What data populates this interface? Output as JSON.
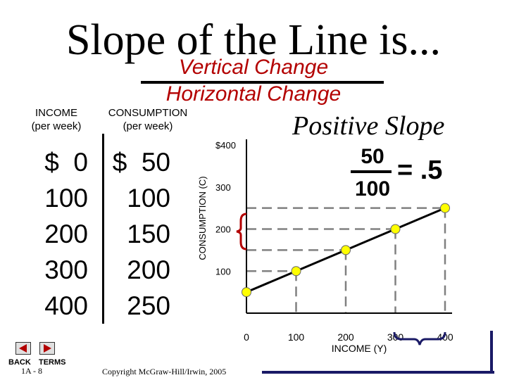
{
  "title": "Slope of the Line is...",
  "fraction": {
    "numerator": "Vertical Change",
    "denominator": "Horizontal Change"
  },
  "table": {
    "income_header": [
      "INCOME",
      "(per week)"
    ],
    "consumption_header": [
      "CONSUMPTION",
      "(per week)"
    ],
    "income": [
      "$  0",
      "100",
      "200",
      "300",
      "400"
    ],
    "consumption": [
      "$  50",
      "100",
      "150",
      "200",
      "250"
    ]
  },
  "slope_label": "Positive Slope",
  "ratio": {
    "numerator": "50",
    "denominator": "100",
    "result": "= .5"
  },
  "chart_data": {
    "type": "line",
    "x": [
      0,
      100,
      200,
      300,
      400
    ],
    "series": [
      {
        "values": [
          50,
          100,
          150,
          200,
          250
        ]
      }
    ],
    "x_ticks": [
      "0",
      "100",
      "200",
      "300",
      "400"
    ],
    "y_ticks": [
      "100",
      "200",
      "300",
      "$400"
    ],
    "xlabel": "INCOME (Y)",
    "ylabel": "CONSUMPTION (C)",
    "xlim": [
      0,
      400
    ],
    "ylim": [
      0,
      400
    ],
    "line_color": "#000000",
    "point_color": "#ffff00",
    "grid_color": "#808080"
  },
  "nav": {
    "back": "BACK",
    "terms": "TERMS",
    "slide": "1A - 8"
  },
  "copyright": "Copyright McGraw-Hill/Irwin, 2005"
}
